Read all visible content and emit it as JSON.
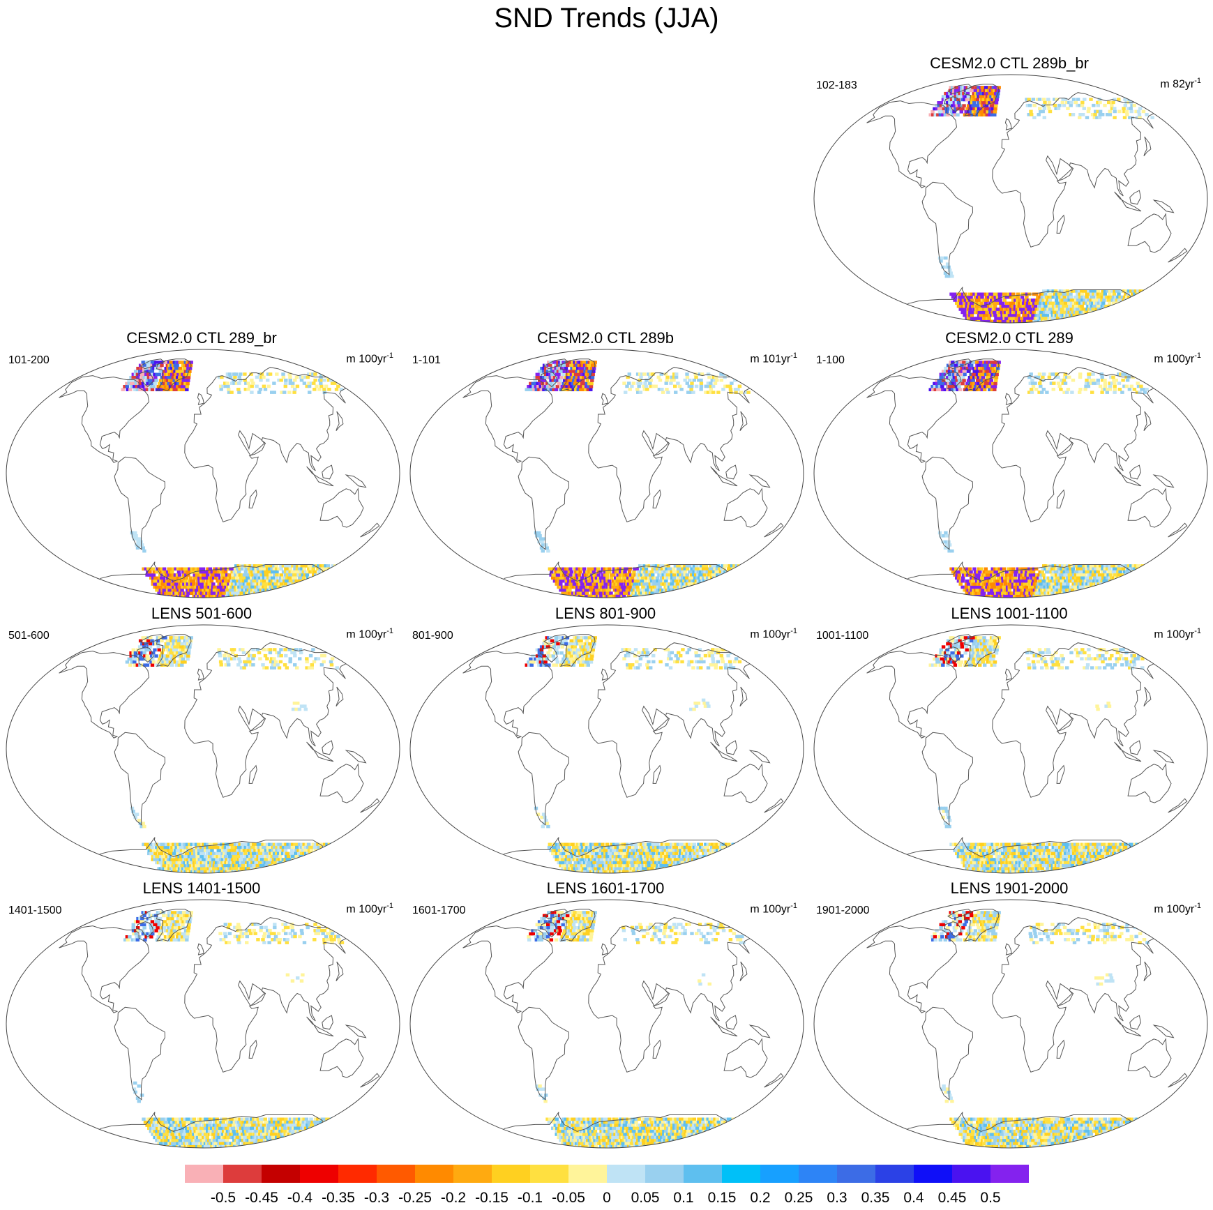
{
  "title": "SND Trends (JJA)",
  "chart_data": {
    "type": "heatmap",
    "title": "SND Trends (JJA)",
    "projection": "robinson-like world map",
    "colorbar": {
      "levels": [
        -0.5,
        -0.45,
        -0.4,
        -0.35,
        -0.3,
        -0.25,
        -0.2,
        -0.15,
        -0.1,
        -0.05,
        0,
        0.05,
        0.1,
        0.15,
        0.2,
        0.25,
        0.3,
        0.35,
        0.4,
        0.45,
        0.5
      ],
      "labels": [
        "-0.5",
        "-0.45",
        "-0.4",
        "-0.35",
        "-0.3",
        "-0.25",
        "-0.2",
        "-0.15",
        "-0.1",
        "-0.05",
        "0",
        "0.05",
        "0.1",
        "0.15",
        "0.2",
        "0.25",
        "0.3",
        "0.35",
        "0.4",
        "0.45",
        "0.5"
      ],
      "colors": [
        "#f9b0b6",
        "#dd3c3c",
        "#c40000",
        "#ee0000",
        "#ff2a00",
        "#ff5a00",
        "#ff8a00",
        "#ffaa10",
        "#ffd020",
        "#ffe040",
        "#fff49a",
        "#bfe3f5",
        "#99d0ef",
        "#5ebfef",
        "#00c0f8",
        "#17a0ff",
        "#2d84f6",
        "#3c6ce6",
        "#2b41e6",
        "#0f0ff8",
        "#4a12f0",
        "#8422ee"
      ]
    },
    "panels": [
      {
        "title": "CESM2.0 CTL 289b_br",
        "period": "102-183",
        "unit": "m 82yr",
        "unit_exp": "-1",
        "pattern": "strong"
      },
      {
        "title": "CESM2.0 CTL 289_br",
        "period": "101-200",
        "unit": "m 100yr",
        "unit_exp": "-1",
        "pattern": "strong"
      },
      {
        "title": "CESM2.0 CTL 289b",
        "period": "1-101",
        "unit": "m 101yr",
        "unit_exp": "-1",
        "pattern": "strong"
      },
      {
        "title": "CESM2.0 CTL 289",
        "period": "1-100",
        "unit": "m 100yr",
        "unit_exp": "-1",
        "pattern": "strong"
      },
      {
        "title": "LENS 501-600",
        "period": "501-600",
        "unit": "m 100yr",
        "unit_exp": "-1",
        "pattern": "weak"
      },
      {
        "title": "LENS 801-900",
        "period": "801-900",
        "unit": "m 100yr",
        "unit_exp": "-1",
        "pattern": "weak"
      },
      {
        "title": "LENS 1001-1100",
        "period": "1001-1100",
        "unit": "m 100yr",
        "unit_exp": "-1",
        "pattern": "weak"
      },
      {
        "title": "LENS 1401-1500",
        "period": "1401-1500",
        "unit": "m 100yr",
        "unit_exp": "-1",
        "pattern": "weak"
      },
      {
        "title": "LENS 1601-1700",
        "period": "1601-1700",
        "unit": "m 100yr",
        "unit_exp": "-1",
        "pattern": "weak"
      },
      {
        "title": "LENS 1901-2000",
        "period": "1901-2000",
        "unit": "m 100yr",
        "unit_exp": "-1",
        "pattern": "weak"
      }
    ]
  }
}
